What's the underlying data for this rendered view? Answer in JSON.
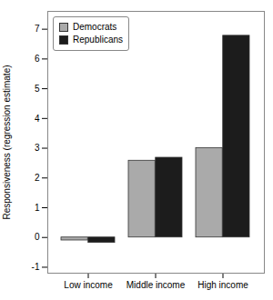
{
  "chart_data": {
    "type": "bar",
    "categories": [
      "Low income",
      "Middle income",
      "High income"
    ],
    "series": [
      {
        "name": "Democrats",
        "color": "#aaaaaa",
        "values": [
          -0.1,
          2.58,
          3.0
        ]
      },
      {
        "name": "Republicans",
        "color": "#1c1c1c",
        "values": [
          -0.18,
          2.68,
          6.78
        ]
      }
    ],
    "ylabel": "Responsiveness (regression estimate)",
    "ylim": [
      -1.2,
      7.6
    ],
    "yticks": [
      -1,
      0,
      1,
      2,
      3,
      4,
      5,
      6,
      7
    ],
    "grid": false,
    "legend": "upper left"
  }
}
